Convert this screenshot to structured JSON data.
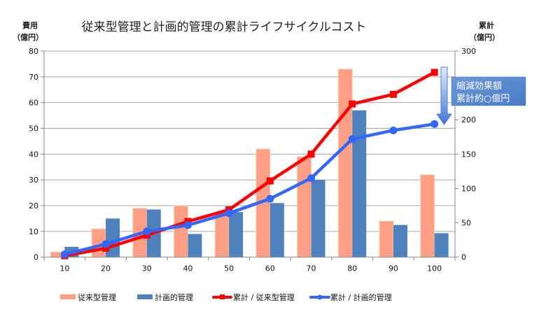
{
  "chart_data": {
    "type": "bar",
    "title": "従来型管理と計画的管理の累計ライフサイクルコスト",
    "xlabel": "",
    "ylabel": "費用",
    "ylabel_unit": "（億円）",
    "y2label": "累計",
    "y2label_unit": "（億円）",
    "categories": [
      "10",
      "20",
      "30",
      "40",
      "50",
      "60",
      "70",
      "80",
      "90",
      "100"
    ],
    "ylim": [
      0,
      80
    ],
    "yticks": [
      "0",
      "10",
      "20",
      "30",
      "40",
      "50",
      "60",
      "70",
      "80"
    ],
    "y2lim": [
      0,
      300
    ],
    "y2ticks": [
      "0",
      "50",
      "100",
      "150",
      "200",
      "250",
      "300"
    ],
    "grid": true,
    "legend_position": "bottom",
    "series": [
      {
        "name": "従来型管理",
        "type": "bar",
        "axis": "left",
        "color": "#FF9F85",
        "values": [
          2,
          11,
          19,
          20,
          17,
          42,
          39,
          73,
          14,
          32
        ]
      },
      {
        "name": "計画的管理",
        "type": "bar",
        "axis": "left",
        "color": "#4F81BD",
        "values": [
          4,
          15,
          18.5,
          9,
          17.5,
          21,
          30,
          57,
          12.5,
          9.3
        ]
      },
      {
        "name": "累計 / 従来型管理",
        "type": "line",
        "axis": "right",
        "color": "#FF0000",
        "marker": "square",
        "values": [
          2,
          13,
          32,
          52,
          69,
          111,
          150,
          223,
          237,
          269
        ]
      },
      {
        "name": "累計 / 計画的管理",
        "type": "line",
        "axis": "right",
        "color": "#3366FF",
        "marker": "circle",
        "values": [
          4,
          19,
          37.5,
          46.5,
          64,
          85,
          115,
          172,
          184.5,
          193.8
        ]
      }
    ],
    "annotation": {
      "lines": [
        "縮減効果額",
        "累計約○億円"
      ],
      "arrow": "down-arrow"
    }
  }
}
